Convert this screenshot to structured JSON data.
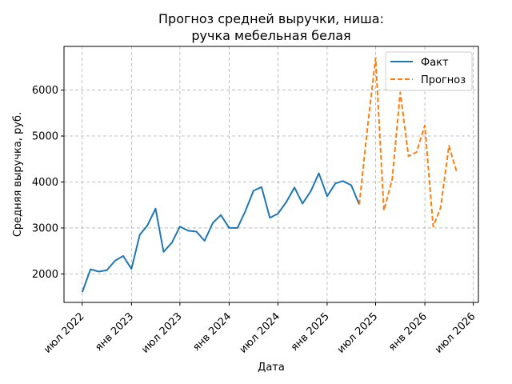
{
  "chart_data": {
    "type": "line",
    "title_line1": "Прогноз средней выручки, ниша:",
    "title_line2": "ручка мебельная белая",
    "xlabel": "Дата",
    "ylabel": "Средняя выручка, руб.",
    "ylim": [
      1380,
      6950
    ],
    "yticks": [
      2000,
      3000,
      4000,
      5000,
      6000
    ],
    "xlim": [
      "2022-04-24",
      "2026-07-20"
    ],
    "xticks": [
      {
        "date": "2022-07-01",
        "label": "июл 2022"
      },
      {
        "date": "2023-01-01",
        "label": "янв 2023"
      },
      {
        "date": "2023-07-01",
        "label": "июл 2023"
      },
      {
        "date": "2024-01-01",
        "label": "янв 2024"
      },
      {
        "date": "2024-07-01",
        "label": "июл 2024"
      },
      {
        "date": "2025-01-01",
        "label": "янв 2025"
      },
      {
        "date": "2025-07-01",
        "label": "июл 2025"
      },
      {
        "date": "2026-01-01",
        "label": "янв 2026"
      },
      {
        "date": "2026-07-01",
        "label": "июл 2026"
      }
    ],
    "grid": true,
    "legend_position": "top-right",
    "series": [
      {
        "name": "Факт",
        "color": "#1f77b4",
        "style": "solid",
        "points": [
          [
            "2022-07-01",
            1600
          ],
          [
            "2022-08-01",
            2100
          ],
          [
            "2022-09-01",
            2050
          ],
          [
            "2022-10-01",
            2080
          ],
          [
            "2022-11-01",
            2290
          ],
          [
            "2022-12-01",
            2390
          ],
          [
            "2023-01-01",
            2110
          ],
          [
            "2023-02-01",
            2850
          ],
          [
            "2023-03-01",
            3050
          ],
          [
            "2023-04-01",
            3420
          ],
          [
            "2023-05-01",
            2480
          ],
          [
            "2023-06-01",
            2680
          ],
          [
            "2023-07-01",
            3030
          ],
          [
            "2023-08-01",
            2940
          ],
          [
            "2023-09-01",
            2920
          ],
          [
            "2023-10-01",
            2720
          ],
          [
            "2023-11-01",
            3110
          ],
          [
            "2023-12-01",
            3280
          ],
          [
            "2024-01-01",
            3000
          ],
          [
            "2024-02-01",
            3000
          ],
          [
            "2024-03-01",
            3360
          ],
          [
            "2024-04-01",
            3810
          ],
          [
            "2024-05-01",
            3890
          ],
          [
            "2024-06-01",
            3220
          ],
          [
            "2024-07-01",
            3310
          ],
          [
            "2024-08-01",
            3560
          ],
          [
            "2024-09-01",
            3880
          ],
          [
            "2024-10-01",
            3530
          ],
          [
            "2024-11-01",
            3800
          ],
          [
            "2024-12-01",
            4190
          ],
          [
            "2025-01-01",
            3690
          ],
          [
            "2025-02-01",
            3970
          ],
          [
            "2025-03-01",
            4020
          ],
          [
            "2025-04-01",
            3930
          ],
          [
            "2025-05-01",
            3510
          ]
        ]
      },
      {
        "name": "Прогноз",
        "color": "#ff7f0e",
        "style": "dashed",
        "points": [
          [
            "2025-05-01",
            3510
          ],
          [
            "2025-06-01",
            5200
          ],
          [
            "2025-07-01",
            6700
          ],
          [
            "2025-08-01",
            3380
          ],
          [
            "2025-09-01",
            4060
          ],
          [
            "2025-10-01",
            5950
          ],
          [
            "2025-11-01",
            4560
          ],
          [
            "2025-12-01",
            4650
          ],
          [
            "2026-01-01",
            5230
          ],
          [
            "2026-02-01",
            3030
          ],
          [
            "2026-03-01",
            3440
          ],
          [
            "2026-04-01",
            4790
          ],
          [
            "2026-05-01",
            4200
          ]
        ]
      }
    ]
  }
}
